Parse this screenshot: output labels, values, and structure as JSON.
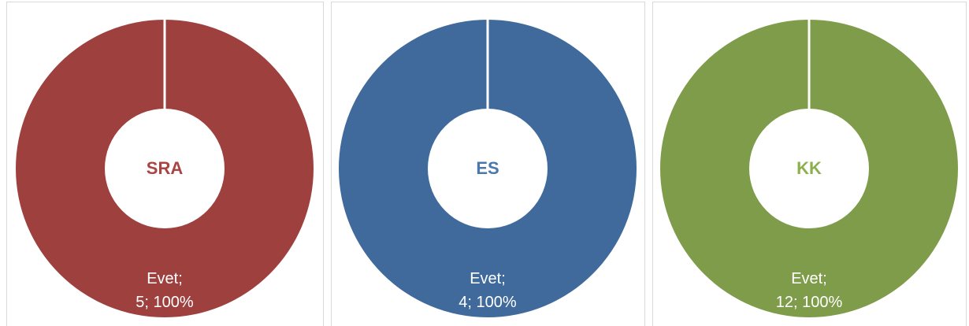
{
  "chart_data": [
    {
      "type": "donut",
      "title": "SRA",
      "categories": [
        "Evet;"
      ],
      "values": [
        5
      ],
      "value_labels": [
        "5; 100%"
      ],
      "colors": [
        "#9e413e"
      ],
      "title_color": "#a94442"
    },
    {
      "type": "donut",
      "title": "ES",
      "categories": [
        "Evet;"
      ],
      "values": [
        4
      ],
      "value_labels": [
        "4; 100%"
      ],
      "colors": [
        "#3f6a9b"
      ],
      "title_color": "#4a78ad"
    },
    {
      "type": "donut",
      "title": "KK",
      "categories": [
        "Evet;"
      ],
      "values": [
        12
      ],
      "value_labels": [
        "12; 100%"
      ],
      "colors": [
        "#7e9c4a"
      ],
      "title_color": "#8db04e"
    }
  ]
}
